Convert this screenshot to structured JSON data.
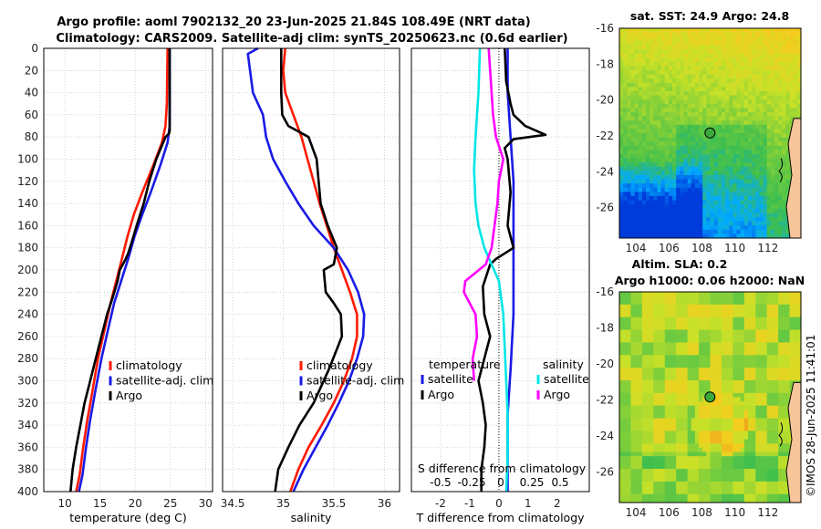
{
  "header": {
    "title_line1": "Argo profile: aoml 7902132_20 23-Jun-2025 21.84S 108.49E (NRT data)",
    "title_line2": "Climatology: CARS2009. Satellite-adj clim: synTS_20250623.nc (0.6d earlier)"
  },
  "watermark": "©IMOS 28-Jun-2025 11:41:01",
  "colors": {
    "climatology": "#ff1a00",
    "satellite": "#1a1ae6",
    "argo": "#000000",
    "temp_diff": "#00e6e6",
    "sal_diff": "#ff00ff",
    "land": "#f7c59a"
  },
  "chart_data": [
    {
      "type": "line",
      "id": "temperature",
      "xlabel": "temperature (deg C)",
      "xlim": [
        7,
        31
      ],
      "xticks": [
        10,
        15,
        20,
        25,
        30
      ],
      "ylim": [
        0,
        400
      ],
      "yticks": [
        0,
        20,
        40,
        60,
        80,
        100,
        120,
        140,
        160,
        180,
        200,
        220,
        240,
        260,
        280,
        300,
        320,
        340,
        360,
        380,
        400
      ],
      "legend": [
        "climatology",
        "satellite-adj. clim",
        "Argo"
      ],
      "series": [
        {
          "name": "climatology",
          "color": "#ff1a00",
          "x": [
            24.6,
            24.5,
            24.3,
            23.8,
            22.6,
            21.0,
            19.8,
            18.9,
            18.1,
            17.3,
            16.5,
            15.6,
            14.7,
            13.9,
            13.2,
            12.6,
            12.1,
            11.6
          ],
          "y": [
            0,
            50,
            70,
            85,
            105,
            130,
            150,
            170,
            190,
            210,
            230,
            255,
            280,
            310,
            335,
            360,
            385,
            400
          ]
        },
        {
          "name": "satellite-adj. clim",
          "color": "#1a1ae6",
          "x": [
            24.9,
            24.9,
            24.9,
            24.6,
            23.6,
            22.2,
            21.0,
            19.9,
            19.0,
            18.0,
            17.0,
            16.1,
            15.2,
            14.3,
            13.6,
            13.0,
            12.5,
            12.0
          ],
          "y": [
            0,
            50,
            70,
            85,
            105,
            130,
            150,
            170,
            190,
            210,
            230,
            255,
            280,
            310,
            335,
            360,
            385,
            400
          ]
        },
        {
          "name": "Argo",
          "color": "#000000",
          "x": [
            24.9,
            24.9,
            24.9,
            24.8,
            24.3,
            23.0,
            22.0,
            21.2,
            20.2,
            19.5,
            19.0,
            18.5,
            17.8,
            17.5,
            16.8,
            16.0,
            15.2,
            14.4,
            13.6,
            12.8,
            12.2,
            11.6,
            11.1,
            10.8
          ],
          "y": [
            0,
            60,
            74,
            77,
            80,
            100,
            120,
            140,
            160,
            175,
            185,
            192,
            200,
            210,
            225,
            240,
            260,
            280,
            300,
            320,
            340,
            360,
            380,
            400
          ]
        }
      ]
    },
    {
      "type": "line",
      "id": "salinity",
      "xlabel": "salinity",
      "xlim": [
        34.4,
        36.15
      ],
      "xticks": [
        34.5,
        35,
        35.5,
        36
      ],
      "ylim": [
        0,
        400
      ],
      "legend": [
        "climatology",
        "satellite-adj. clim",
        "Argo"
      ],
      "series": [
        {
          "name": "climatology",
          "color": "#ff1a00",
          "x": [
            35.02,
            35.0,
            35.02,
            35.1,
            35.18,
            35.24,
            35.3,
            35.36,
            35.43,
            35.5,
            35.58,
            35.66,
            35.73,
            35.73,
            35.68,
            35.6,
            35.5,
            35.38,
            35.25,
            35.15,
            35.07
          ],
          "y": [
            0,
            20,
            40,
            60,
            80,
            100,
            120,
            140,
            160,
            180,
            200,
            220,
            240,
            260,
            280,
            300,
            320,
            340,
            360,
            380,
            400
          ]
        },
        {
          "name": "satellite-adj. clim",
          "color": "#1a1ae6",
          "x": [
            34.75,
            34.65,
            34.7,
            34.8,
            34.83,
            34.9,
            35.02,
            35.15,
            35.3,
            35.5,
            35.64,
            35.74,
            35.8,
            35.79,
            35.73,
            35.65,
            35.55,
            35.44,
            35.32,
            35.2,
            35.1
          ],
          "y": [
            0,
            5,
            40,
            60,
            80,
            100,
            120,
            140,
            160,
            180,
            200,
            220,
            240,
            260,
            280,
            300,
            320,
            340,
            360,
            380,
            400
          ]
        },
        {
          "name": "Argo",
          "color": "#000000",
          "x": [
            34.98,
            34.98,
            34.99,
            35.05,
            35.25,
            35.33,
            35.37,
            35.44,
            35.53,
            35.5,
            35.4,
            35.42,
            35.5,
            35.57,
            35.58,
            35.45,
            35.3,
            35.16,
            35.05,
            34.95,
            34.92
          ],
          "y": [
            0,
            40,
            60,
            70,
            80,
            100,
            140,
            160,
            180,
            195,
            200,
            220,
            230,
            240,
            260,
            290,
            320,
            340,
            360,
            380,
            400
          ]
        }
      ]
    },
    {
      "type": "line",
      "id": "difference",
      "xlabel": "T difference from climatology",
      "xlabel_top": "S difference from climatology",
      "xlim": [
        -3,
        3.1
      ],
      "xticks": [
        -2,
        -1,
        0,
        1,
        2
      ],
      "xticks_top": [
        -0.5,
        -0.25,
        0,
        0.25,
        0.5
      ],
      "ylim": [
        0,
        400
      ],
      "legend_titles": [
        "temperature",
        "salinity"
      ],
      "legend": [
        "satellite",
        "Argo",
        "satellite",
        "Argo"
      ],
      "series": [
        {
          "name": "temperature satellite",
          "color": "#1a1ae6",
          "x": [
            0.3,
            0.3,
            0.4,
            0.5,
            0.5,
            0.5,
            0.4,
            0.3,
            0.3,
            0.3
          ],
          "y": [
            0,
            40,
            80,
            120,
            180,
            240,
            290,
            330,
            370,
            400
          ]
        },
        {
          "name": "temperature Argo",
          "color": "#000000",
          "x": [
            0.2,
            0.25,
            0.4,
            0.5,
            0.9,
            1.6,
            0.5,
            0.2,
            0.3,
            0.4,
            0.3,
            0.5,
            0.2,
            -0.1,
            -0.3,
            -0.55,
            -0.5,
            -0.3,
            -0.5,
            -0.7,
            -0.55,
            -0.45,
            -0.5,
            -0.6,
            -0.6
          ],
          "y": [
            0,
            30,
            50,
            60,
            70,
            78,
            82,
            90,
            100,
            130,
            160,
            180,
            185,
            190,
            195,
            215,
            240,
            260,
            280,
            300,
            320,
            340,
            360,
            380,
            400
          ]
        },
        {
          "name": "salinity satellite",
          "color": "#00e6e6",
          "x": [
            -0.65,
            -0.7,
            -0.8,
            -0.85,
            -0.8,
            -0.7,
            -0.5,
            -0.25,
            0.0,
            0.15,
            0.2,
            0.25,
            0.3,
            0.3,
            0.25
          ],
          "y": [
            0,
            40,
            80,
            110,
            140,
            160,
            180,
            195,
            210,
            240,
            270,
            300,
            330,
            370,
            400
          ]
        },
        {
          "name": "salinity Argo",
          "color": "#ff00ff",
          "x": [
            -0.35,
            -0.2,
            -0.1,
            0.15,
            0.0,
            -0.05,
            -0.15,
            -0.25,
            -0.45,
            -1.15,
            -1.2,
            -0.8,
            -0.75,
            -0.9,
            -0.85
          ],
          "y": [
            0,
            60,
            80,
            100,
            120,
            140,
            160,
            180,
            195,
            210,
            220,
            240,
            260,
            280,
            300
          ]
        }
      ]
    }
  ],
  "maps": [
    {
      "id": "sst",
      "title": "sat. SST: 24.9 Argo: 24.8",
      "yticks": [
        -16,
        -18,
        -20,
        -22,
        -24,
        -26
      ],
      "xticks": [
        "104",
        "106",
        "108",
        "110",
        "112"
      ],
      "marker": [
        108.49,
        -21.84
      ]
    },
    {
      "id": "sla",
      "title_line1": "Altim. SLA: 0.2",
      "title_line2": "Argo h1000: 0.06 h2000: NaN",
      "yticks": [
        -16,
        -18,
        -20,
        -22,
        -24,
        -26
      ],
      "xticks": [
        "104",
        "106",
        "108",
        "110",
        "112"
      ],
      "marker": [
        108.49,
        -21.84
      ]
    }
  ]
}
